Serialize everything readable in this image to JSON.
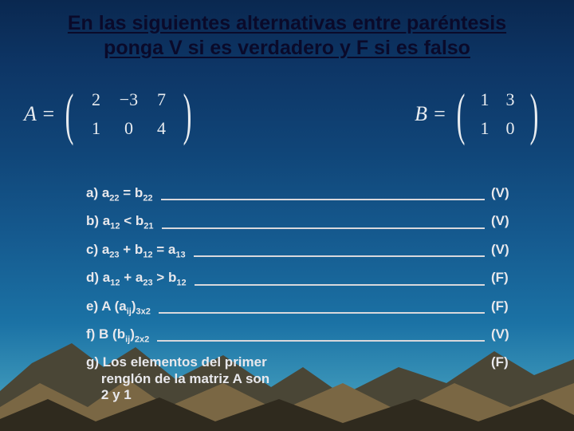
{
  "title": "En las siguientes alternativas entre paréntesis ponga V si es verdadero y F si es falso",
  "matrixA": {
    "label": "A =",
    "rows": [
      [
        "2",
        "−3",
        "7"
      ],
      [
        "1",
        "0",
        "4"
      ]
    ]
  },
  "matrixB": {
    "label": "B =",
    "rows": [
      [
        "1",
        "3"
      ],
      [
        "1",
        "0"
      ]
    ]
  },
  "items": [
    {
      "label_html": "a)  a<span class='tiny'>22</span> = b<span class='tiny'>22</span>",
      "answer": "(V)",
      "rule": true
    },
    {
      "label_html": "b)  a<span class='tiny'>12</span> &lt; b<span class='tiny'>21</span>",
      "answer": "(V)",
      "rule": true
    },
    {
      "label_html": "c) a<span class='tiny'>23</span> + b<span class='tiny'>12</span> = a<span class='tiny'>13</span>",
      "answer": "(V)",
      "rule": true
    },
    {
      "label_html": "d) a<span class='tiny'>12</span> + a<span class='tiny'>23</span> &gt; b<span class='tiny'>12</span>",
      "answer": "(F)",
      "rule": true
    },
    {
      "label_html": "e) A (a<span class='tiny'>ij</span>)<span class='tiny'>3x2</span>",
      "answer": "(F)",
      "rule": true
    },
    {
      "label_html": "f) B (b<span class='tiny'>ij</span>)<span class='tiny'>2x2</span>",
      "answer": "(V)",
      "rule": true
    },
    {
      "label_html": "g) Los elementos del primer<br>&nbsp;&nbsp;&nbsp;&nbsp;renglón de la matriz A son<br>&nbsp;&nbsp;&nbsp;&nbsp;2 y 1",
      "answer": "(F)",
      "rule": false
    }
  ],
  "colors": {
    "title": "#0a0a2a",
    "text": "#e8ecf0",
    "terrain_back": "#3b3a2f",
    "terrain_mid": "#6a5a3c",
    "terrain_front": "#2d281d"
  }
}
